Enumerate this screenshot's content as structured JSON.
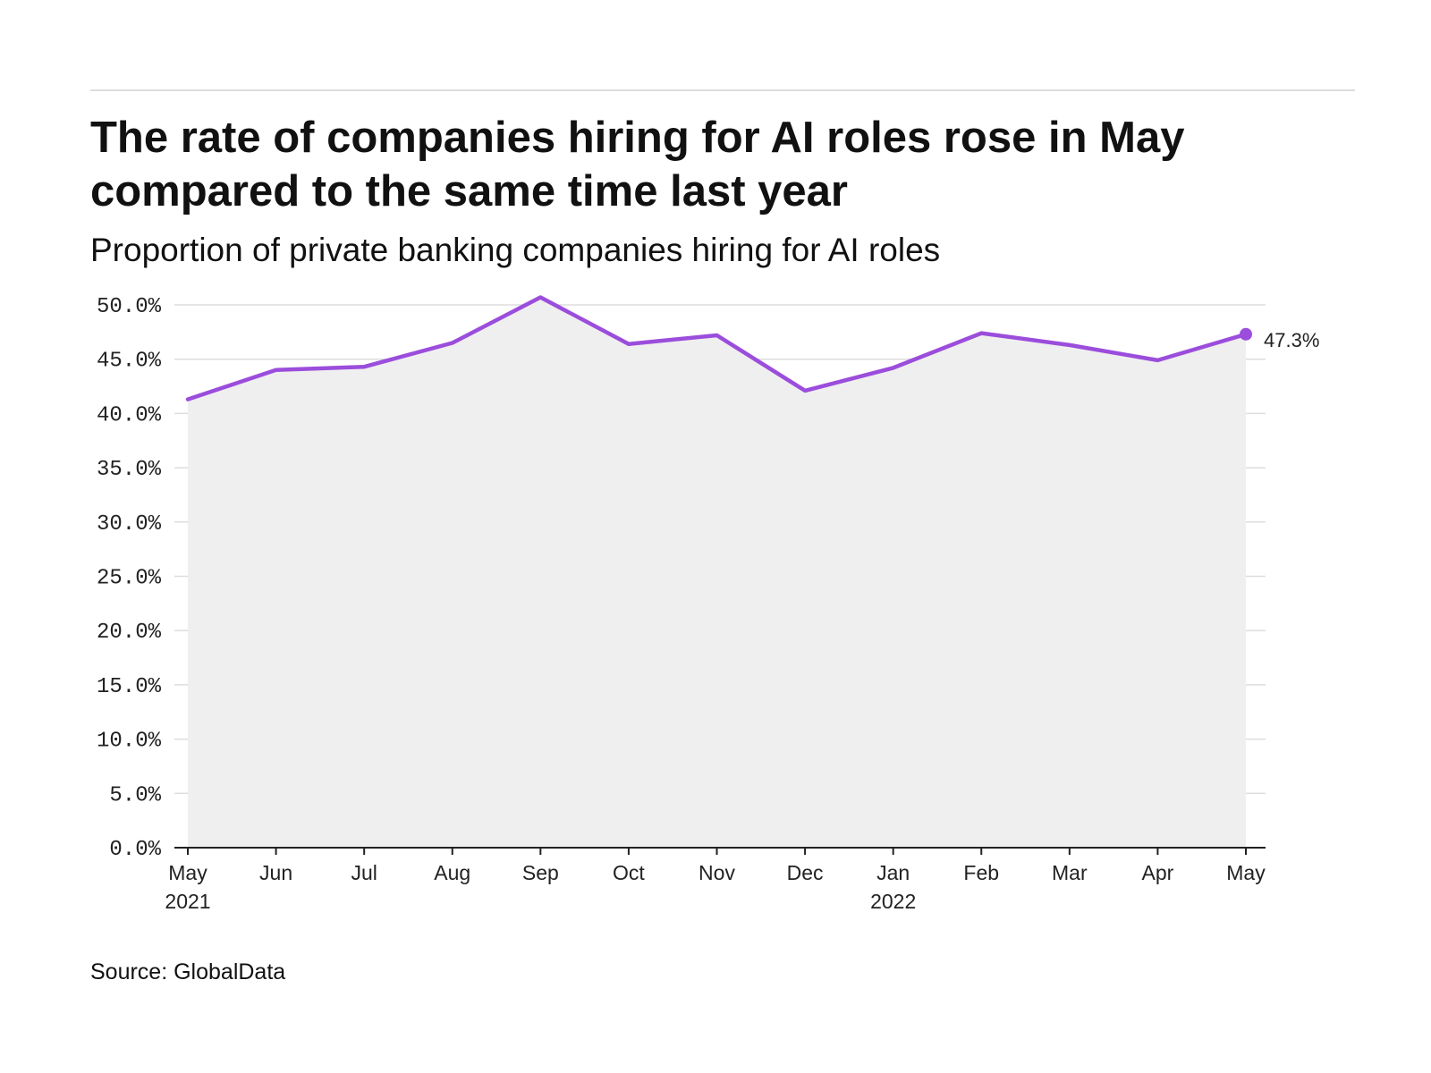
{
  "title": "The rate of companies hiring for AI roles rose in May compared to the same time last year",
  "subtitle": "Proportion of private banking companies hiring for AI roles",
  "source": "Source: GlobalData",
  "colors": {
    "line": "#9b4ddc",
    "area": "#efefef",
    "grid": "#dddddd",
    "axis": "#222222"
  },
  "chart_data": {
    "type": "area",
    "x": [
      "May 2021",
      "Jun 2021",
      "Jul 2021",
      "Aug 2021",
      "Sep 2021",
      "Oct 2021",
      "Nov 2021",
      "Dec 2021",
      "Jan 2022",
      "Feb 2022",
      "Mar 2022",
      "Apr 2022",
      "May 2022"
    ],
    "x_tick_labels": [
      [
        "May",
        "2021"
      ],
      [
        "Jun"
      ],
      [
        "Jul"
      ],
      [
        "Aug"
      ],
      [
        "Sep"
      ],
      [
        "Oct"
      ],
      [
        "Nov"
      ],
      [
        "Dec"
      ],
      [
        "Jan",
        "2022"
      ],
      [
        "Feb"
      ],
      [
        "Mar"
      ],
      [
        "Apr"
      ],
      [
        "May"
      ]
    ],
    "series": [
      {
        "values": [
          41.3,
          44.0,
          44.3,
          46.5,
          50.7,
          46.4,
          47.2,
          42.1,
          44.2,
          47.4,
          46.3,
          44.9,
          47.3
        ]
      }
    ],
    "end_label": "47.3%",
    "ylim": [
      0,
      50
    ],
    "y_ticks": [
      0,
      5,
      10,
      15,
      20,
      25,
      30,
      35,
      40,
      45,
      50
    ],
    "y_tick_labels": [
      "0.0%",
      "5.0%",
      "10.0%",
      "15.0%",
      "20.0%",
      "25.0%",
      "30.0%",
      "35.0%",
      "40.0%",
      "45.0%",
      "50.0%"
    ],
    "xlabel": "",
    "ylabel": "",
    "grid": true,
    "legend": "none"
  }
}
